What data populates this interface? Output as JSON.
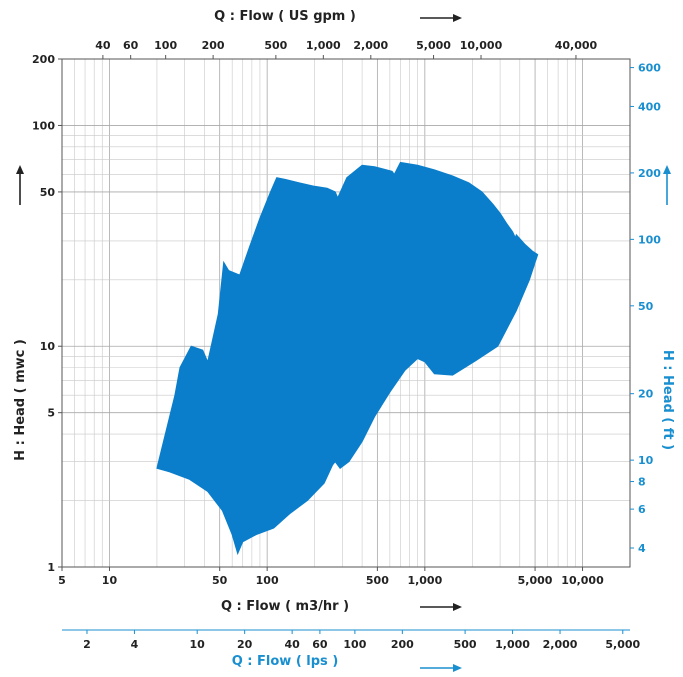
{
  "chart_data": {
    "type": "area",
    "axes": {
      "x_bottom": {
        "label": "Q : Flow ( m3/hr )",
        "scale": "log",
        "range": [
          5,
          20000
        ],
        "ticks": [
          5,
          10,
          50,
          100,
          500,
          "1,000",
          "5,000",
          "10,000"
        ]
      },
      "x_top": {
        "label": "Q : Flow ( US gpm )",
        "scale": "log",
        "ticks": [
          40,
          60,
          100,
          200,
          500,
          "1,000",
          "2,000",
          "5,000",
          "10,000",
          "40,000"
        ]
      },
      "x_lps": {
        "label": "Q : Flow ( lps )",
        "scale": "log",
        "ticks": [
          2,
          4,
          10,
          20,
          40,
          60,
          100,
          200,
          500,
          "1,000",
          "2,000",
          "5,000"
        ]
      },
      "y_left": {
        "label": "H : Head ( mwc )",
        "scale": "log",
        "range": [
          1,
          200
        ],
        "ticks": [
          1,
          5,
          10,
          50,
          100,
          200
        ]
      },
      "y_right": {
        "label": "H : Head ( ft )",
        "scale": "log",
        "ticks": [
          4,
          6,
          8,
          10,
          20,
          50,
          100,
          200,
          400,
          600
        ]
      }
    },
    "grid": true,
    "series": [
      {
        "color": "#0a7ecb",
        "x": [
          20,
          26,
          28,
          33,
          39,
          42,
          49,
          53,
          57,
          67,
          77,
          90,
          105,
          115,
          130,
          160,
          200,
          240,
          270,
          280,
          320,
          400,
          480,
          620,
          640,
          700,
          900,
          1150,
          1500,
          1900,
          2300,
          2700,
          3000,
          3300,
          3600,
          3750,
          3800,
          4300,
          4800,
          5200,
          4600,
          3800,
          2900,
          2100,
          1500,
          1150,
          1000,
          900,
          750,
          600,
          480,
          400,
          330,
          290,
          270,
          260,
          230,
          180,
          140,
          110,
          85,
          70,
          65,
          60,
          52,
          42,
          32,
          24,
          20
        ],
        "y": [
          2.8,
          6.0,
          8.0,
          10.0,
          9.6,
          8.5,
          14.0,
          24.0,
          22.0,
          21.0,
          28.0,
          38.0,
          50.0,
          58.0,
          57.0,
          55.0,
          53.0,
          52.0,
          50.0,
          47.0,
          58.0,
          66.0,
          65.0,
          62.0,
          60.0,
          68.0,
          66.0,
          63.0,
          59.0,
          55.0,
          50.0,
          44.0,
          40.0,
          36.0,
          33.0,
          31.0,
          32.0,
          29.0,
          27.0,
          26.0,
          20.0,
          14.5,
          10.0,
          8.6,
          7.4,
          7.5,
          8.5,
          8.8,
          7.8,
          6.2,
          4.8,
          3.7,
          3.0,
          2.8,
          3.0,
          2.9,
          2.4,
          2.0,
          1.75,
          1.5,
          1.4,
          1.3,
          1.15,
          1.4,
          1.8,
          2.2,
          2.5,
          2.7,
          2.8
        ]
      }
    ]
  }
}
